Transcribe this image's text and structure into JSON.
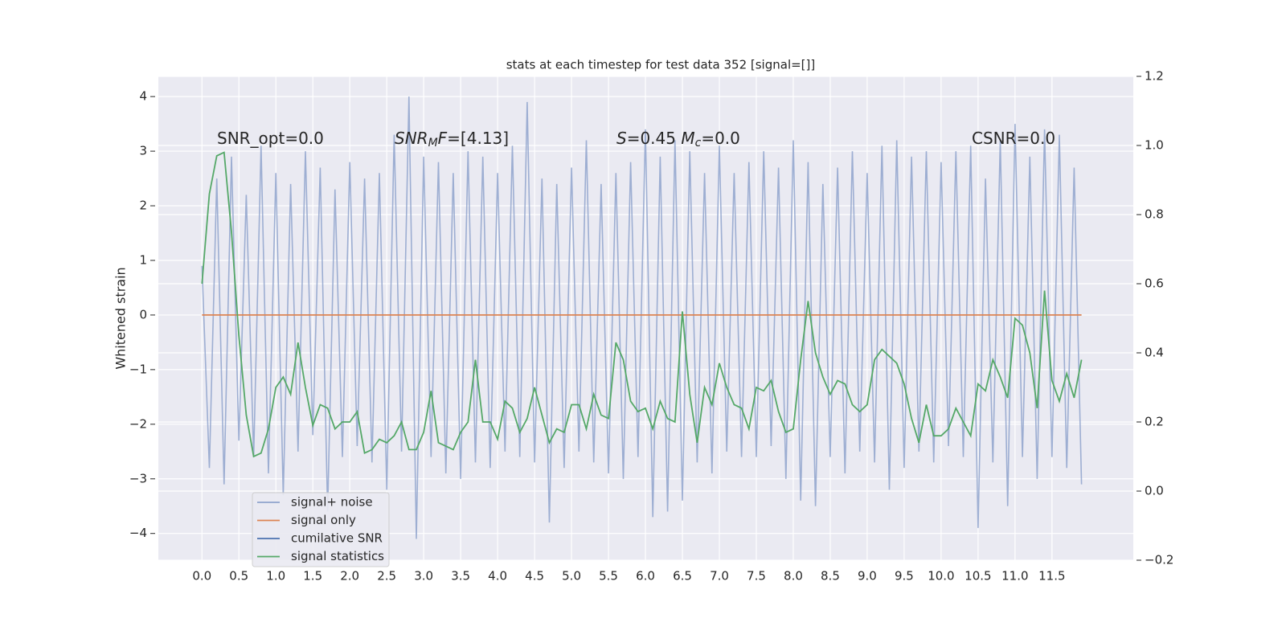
{
  "chart_data": {
    "type": "line",
    "title": "stats at each timestep for test data 352 [signal=[]]",
    "ylabel": "Whitened strain",
    "xlim": [
      -0.59,
      12.6
    ],
    "ylim": [
      -4.49,
      4.37
    ],
    "y2lim": [
      -0.2,
      1.2
    ],
    "xticks": [
      {
        "value": 0,
        "label": "0.0"
      },
      0.5,
      {
        "value": 1,
        "label": "1.0"
      },
      1.5,
      {
        "value": 2,
        "label": "2.0"
      },
      2.5,
      {
        "value": 3,
        "label": "3.0"
      },
      3.5,
      {
        "value": 4,
        "label": "4.0"
      },
      4.5,
      {
        "value": 5,
        "label": "5.0"
      },
      5.5,
      {
        "value": 6,
        "label": "6.0"
      },
      6.5,
      {
        "value": 7,
        "label": "7.0"
      },
      7.5,
      {
        "value": 8,
        "label": "8.0"
      },
      8.5,
      {
        "value": 9,
        "label": "9.0"
      },
      9.5,
      {
        "value": 10,
        "label": "10.0"
      },
      10.5,
      {
        "value": 11,
        "label": "11.0"
      },
      11.5
    ],
    "yticks": [
      {
        "value": -4,
        "label": "−4"
      },
      {
        "value": -3,
        "label": "−3"
      },
      {
        "value": -2,
        "label": "−2"
      },
      {
        "value": -1,
        "label": "−1"
      },
      0,
      1,
      2,
      3,
      4
    ],
    "y2ticks": [
      {
        "value": -0.2,
        "label": "−0.2"
      },
      {
        "value": 0,
        "label": "0.0"
      },
      0.2,
      0.4,
      0.6,
      0.8,
      {
        "value": 1,
        "label": "1.0"
      },
      1.2
    ],
    "grid": true,
    "legend": "lower left",
    "annotations": [
      {
        "parts": [
          {
            "t": "SNR_opt=0.0"
          }
        ]
      },
      {
        "parts": [
          {
            "t": "SNR",
            "italic": true
          },
          {
            "t": "M",
            "italic": true,
            "sub": true
          },
          {
            "t": "F",
            "italic": true
          },
          {
            "t": "=[4.13]"
          }
        ]
      },
      {
        "parts": [
          {
            "t": "S",
            "italic": true
          },
          {
            "t": "=0.45  "
          },
          {
            "t": "M",
            "italic": true
          },
          {
            "t": "c",
            "italic": true,
            "sub": true
          },
          {
            "t": "=0.0"
          }
        ]
      },
      {
        "parts": [
          {
            "t": "CSNR=0.0"
          }
        ]
      }
    ],
    "x": [
      0,
      0.1,
      0.2,
      0.3,
      0.4,
      0.5,
      0.6,
      0.7,
      0.8,
      0.9,
      1,
      1.1,
      1.2,
      1.3,
      1.4,
      1.5,
      1.6,
      1.7,
      1.8,
      1.9,
      2,
      2.1,
      2.2,
      2.3,
      2.4,
      2.5,
      2.6,
      2.7,
      2.8,
      2.9,
      3,
      3.1,
      3.2,
      3.3,
      3.4,
      3.5,
      3.6,
      3.7,
      3.8,
      3.9,
      4,
      4.1,
      4.2,
      4.3,
      4.4,
      4.5,
      4.6,
      4.7,
      4.8,
      4.9,
      5,
      5.1,
      5.2,
      5.3,
      5.4,
      5.5,
      5.6,
      5.7,
      5.8,
      5.9,
      6,
      6.1,
      6.2,
      6.3,
      6.4,
      6.5,
      6.6,
      6.7,
      6.8,
      6.9,
      7,
      7.1,
      7.2,
      7.3,
      7.4,
      7.5,
      7.6,
      7.7,
      7.8,
      7.9,
      8,
      8.1,
      8.2,
      8.3,
      8.4,
      8.5,
      8.6,
      8.7,
      8.8,
      8.9,
      9,
      9.1,
      9.2,
      9.3,
      9.4,
      9.5,
      9.6,
      9.7,
      9.8,
      9.9,
      10,
      10.1,
      10.2,
      10.3,
      10.4,
      10.5,
      10.6,
      10.7,
      10.8,
      10.9,
      11,
      11.1,
      11.2,
      11.3,
      11.4,
      11.5,
      11.6,
      11.7,
      11.8,
      11.9
    ],
    "series": [
      {
        "name": "signal+ noise",
        "color": "#8fa3cc",
        "values": [
          0.9,
          -2.8,
          2.5,
          -3.1,
          2.9,
          -2.3,
          2.2,
          -2.6,
          3.1,
          -2.9,
          2.6,
          -3.3,
          2.4,
          -2.5,
          3.0,
          -2.2,
          2.7,
          -3.6,
          2.3,
          -2.6,
          2.8,
          -2.4,
          2.5,
          -2.7,
          2.6,
          -3.2,
          3.3,
          -2.5,
          4.0,
          -4.1,
          2.9,
          -2.6,
          2.8,
          -2.9,
          2.6,
          -3.0,
          3.0,
          -2.7,
          2.9,
          -2.8,
          2.6,
          -2.5,
          3.1,
          -2.6,
          3.9,
          -2.7,
          2.5,
          -3.8,
          2.4,
          -2.8,
          2.7,
          -2.5,
          3.2,
          -2.7,
          2.4,
          -2.9,
          2.6,
          -3.0,
          2.8,
          -2.6,
          3.4,
          -3.7,
          2.9,
          -3.6,
          3.2,
          -3.4,
          3.0,
          -2.7,
          2.6,
          -2.9,
          3.1,
          -2.5,
          2.6,
          -2.6,
          2.8,
          -2.6,
          3.0,
          -2.4,
          2.7,
          -3.0,
          3.2,
          -3.4,
          2.8,
          -3.5,
          2.4,
          -2.6,
          2.7,
          -2.9,
          3.0,
          -2.5,
          2.6,
          -2.7,
          3.1,
          -3.2,
          3.2,
          -2.8,
          2.9,
          -2.5,
          3.0,
          -2.7,
          2.8,
          -2.4,
          3.0,
          -2.6,
          3.1,
          -3.9,
          2.5,
          -2.7,
          3.2,
          -3.5,
          3.5,
          -2.6,
          2.9,
          -3.0,
          3.4,
          -2.6,
          3.3,
          -2.8,
          2.7,
          -3.1
        ]
      },
      {
        "name": "signal only",
        "color": "#dd8452",
        "values": [
          0,
          0,
          0,
          0,
          0,
          0,
          0,
          0,
          0,
          0,
          0,
          0,
          0,
          0,
          0,
          0,
          0,
          0,
          0,
          0,
          0,
          0,
          0,
          0,
          0,
          0,
          0,
          0,
          0,
          0,
          0,
          0,
          0,
          0,
          0,
          0,
          0,
          0,
          0,
          0,
          0,
          0,
          0,
          0,
          0,
          0,
          0,
          0,
          0,
          0,
          0,
          0,
          0,
          0,
          0,
          0,
          0,
          0,
          0,
          0,
          0,
          0,
          0,
          0,
          0,
          0,
          0,
          0,
          0,
          0,
          0,
          0,
          0,
          0,
          0,
          0,
          0,
          0,
          0,
          0,
          0,
          0,
          0,
          0,
          0,
          0,
          0,
          0,
          0,
          0,
          0,
          0,
          0,
          0,
          0,
          0,
          0,
          0,
          0,
          0,
          0,
          0,
          0,
          0,
          0,
          0,
          0,
          0,
          0,
          0,
          0,
          0,
          0,
          0,
          0,
          0,
          0,
          0,
          0,
          0
        ]
      },
      {
        "name": "cumilative SNR",
        "color": "#4c72b0",
        "values": [
          null,
          null,
          null,
          null,
          null,
          null,
          null,
          null,
          null,
          null,
          null,
          null,
          null,
          null,
          null,
          null,
          null,
          null,
          null,
          null,
          null,
          null,
          null,
          null,
          null,
          null,
          null,
          null,
          null,
          null,
          null,
          null,
          null,
          null,
          null,
          null,
          null,
          null,
          null,
          null,
          null,
          null,
          null,
          null,
          null,
          null,
          null,
          null,
          null,
          null,
          null,
          null,
          null,
          null,
          null,
          null,
          null,
          null,
          null,
          null,
          null,
          null,
          null,
          null,
          null,
          null,
          null,
          null,
          null,
          null,
          null,
          null,
          null,
          null,
          null,
          null,
          null,
          null,
          null,
          null,
          null,
          null,
          null,
          null,
          null,
          null,
          null,
          null,
          null,
          null,
          null,
          null,
          null,
          null,
          null,
          null,
          null,
          null,
          null,
          null,
          null,
          null,
          null,
          null,
          null,
          null,
          null,
          null,
          null,
          null,
          null,
          null,
          null,
          null,
          null,
          null,
          null,
          null,
          null,
          null
        ]
      },
      {
        "name": "signal statistics",
        "color": "#55a868",
        "axis": "y2",
        "values": [
          0.6,
          0.86,
          0.97,
          0.98,
          0.75,
          0.45,
          0.22,
          0.1,
          0.11,
          0.18,
          0.3,
          0.33,
          0.28,
          0.43,
          0.3,
          0.19,
          0.25,
          0.24,
          0.18,
          0.2,
          0.2,
          0.23,
          0.11,
          0.12,
          0.15,
          0.14,
          0.16,
          0.2,
          0.12,
          0.12,
          0.17,
          0.29,
          0.14,
          0.13,
          0.12,
          0.17,
          0.2,
          0.38,
          0.2,
          0.2,
          0.15,
          0.26,
          0.24,
          0.17,
          0.21,
          0.3,
          0.22,
          0.14,
          0.18,
          0.17,
          0.25,
          0.25,
          0.18,
          0.28,
          0.22,
          0.21,
          0.43,
          0.38,
          0.26,
          0.23,
          0.24,
          0.18,
          0.26,
          0.21,
          0.2,
          0.52,
          0.28,
          0.14,
          0.3,
          0.25,
          0.37,
          0.3,
          0.25,
          0.24,
          0.18,
          0.3,
          0.29,
          0.32,
          0.23,
          0.17,
          0.18,
          0.38,
          0.55,
          0.4,
          0.33,
          0.28,
          0.32,
          0.31,
          0.25,
          0.23,
          0.25,
          0.38,
          0.41,
          0.39,
          0.37,
          0.31,
          0.21,
          0.14,
          0.25,
          0.16,
          0.16,
          0.18,
          0.24,
          0.2,
          0.16,
          0.31,
          0.29,
          0.38,
          0.33,
          0.27,
          0.5,
          0.48,
          0.4,
          0.24,
          0.58,
          0.32,
          0.26,
          0.34,
          0.27,
          0.38
        ]
      }
    ]
  }
}
